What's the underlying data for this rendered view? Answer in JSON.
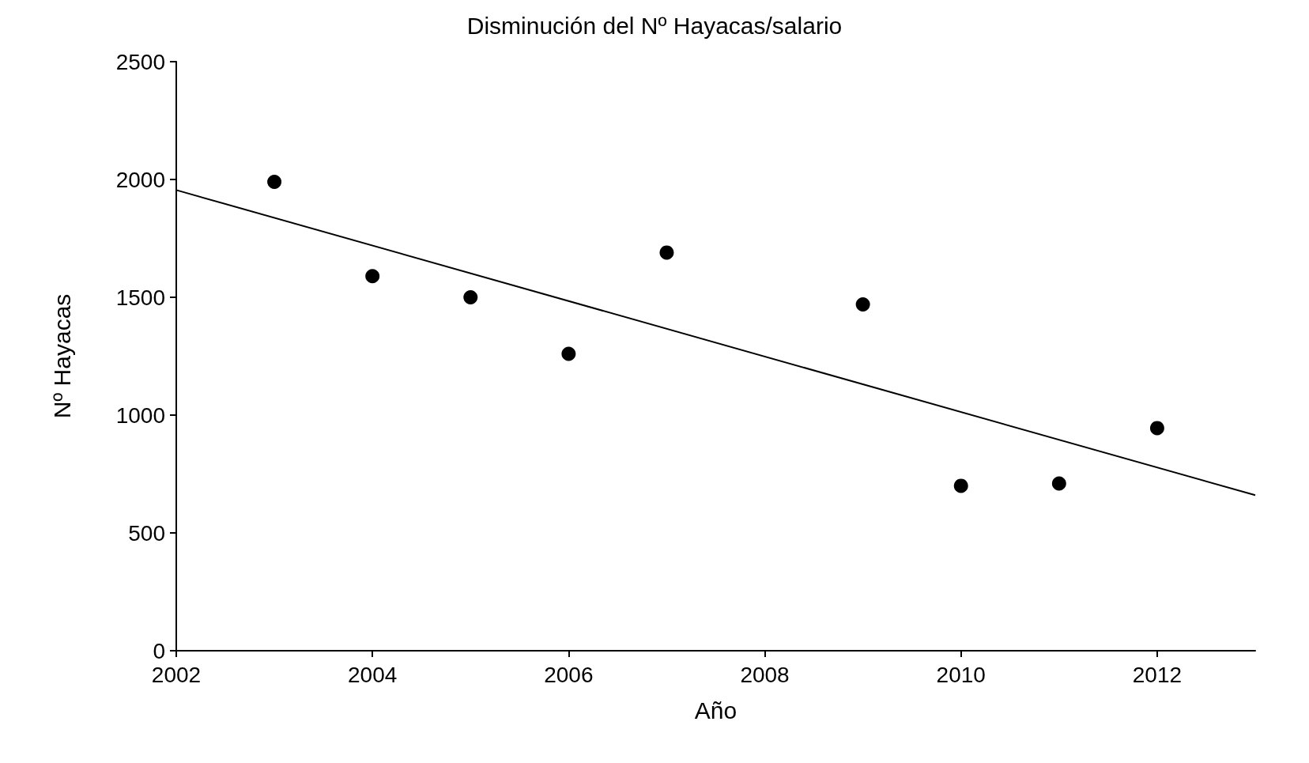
{
  "chart_data": {
    "type": "scatter",
    "title": "Disminución del Nº Hayacas/salario",
    "xlabel": "Año",
    "ylabel": "Nº Hayacas",
    "x": [
      2003,
      2004,
      2005,
      2006,
      2007,
      2009,
      2010,
      2011,
      2012
    ],
    "series": [
      {
        "color": "#000000",
        "values": [
          1990,
          1590,
          1500,
          1260,
          1690,
          1470,
          700,
          710,
          945
        ]
      },
      {
        "type": "line",
        "marker": "none",
        "color": "#000000",
        "x": [
          2002,
          2013
        ],
        "values": [
          1955,
          660
        ]
      }
    ],
    "xlim": [
      2002,
      2013
    ],
    "xticks": [
      2002,
      2004,
      2006,
      2008,
      2010,
      2012
    ],
    "ylim": [
      0,
      2500
    ],
    "yticks": [
      0,
      500,
      1000,
      1500,
      2000,
      2500
    ],
    "grid": false,
    "marker": "circle"
  }
}
